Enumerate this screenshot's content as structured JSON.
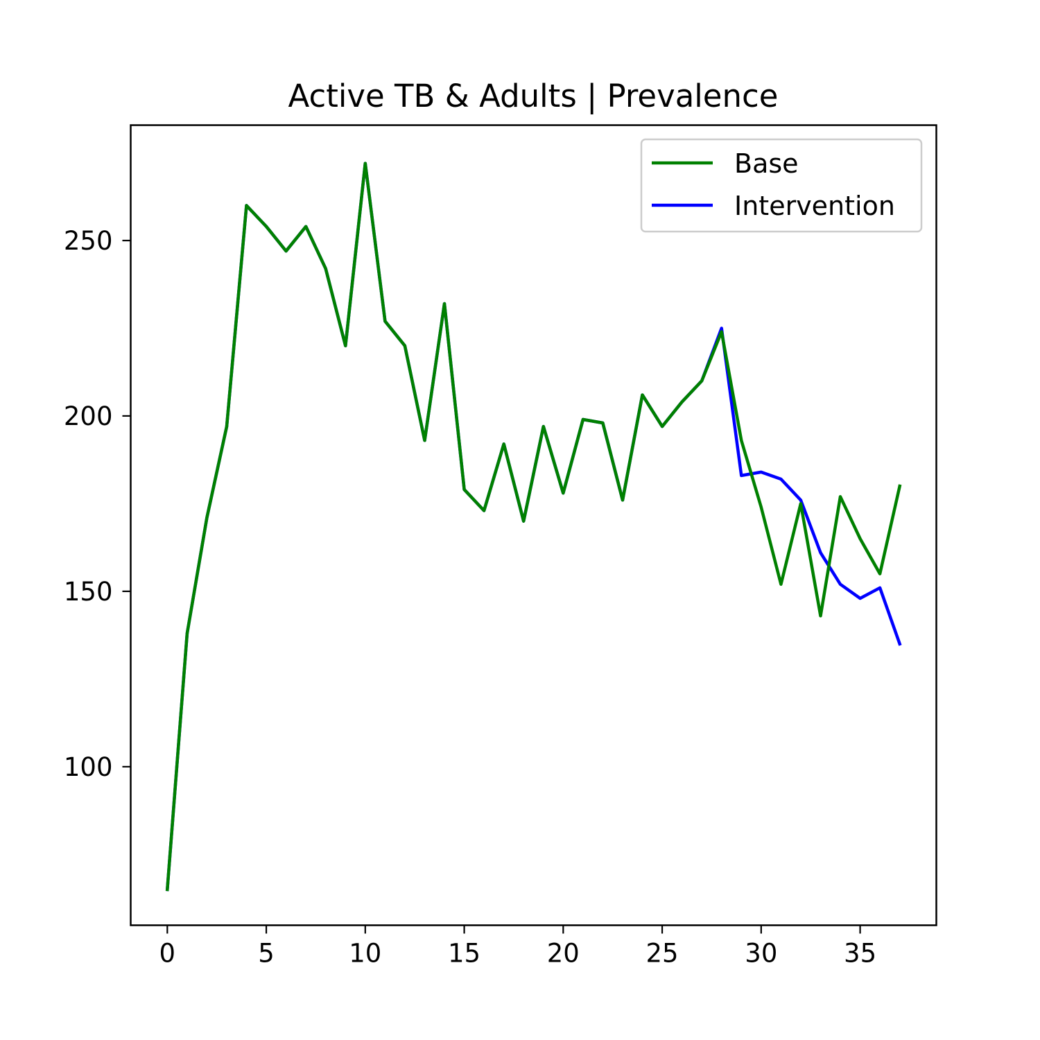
{
  "chart_data": {
    "type": "line",
    "title": "Active TB & Adults | Prevalence",
    "xlabel": "",
    "ylabel": "",
    "xlim": [
      -1.85,
      38.85
    ],
    "ylim": [
      54.8,
      282.9
    ],
    "xticks": [
      0,
      5,
      10,
      15,
      20,
      25,
      30,
      35
    ],
    "yticks": [
      100,
      150,
      200,
      250
    ],
    "grid": false,
    "legend_position": "top-right",
    "x": [
      0,
      1,
      2,
      3,
      4,
      5,
      6,
      7,
      8,
      9,
      10,
      11,
      12,
      13,
      14,
      15,
      16,
      17,
      18,
      19,
      20,
      21,
      22,
      23,
      24,
      25,
      26,
      27,
      28,
      29,
      30,
      31,
      32,
      33,
      34,
      35,
      36,
      37
    ],
    "series": [
      {
        "name": "Base",
        "color": "#008000",
        "values": [
          65,
          138,
          171,
          197,
          260,
          254,
          247,
          254,
          242,
          220,
          272,
          227,
          220,
          193,
          232,
          179,
          173,
          192,
          170,
          197,
          178,
          199,
          198,
          176,
          206,
          197,
          204,
          210,
          224,
          193,
          174,
          152,
          175,
          143,
          177,
          165,
          155,
          180
        ]
      },
      {
        "name": "Intervention",
        "color": "#0000ff",
        "values": [
          65,
          138,
          171,
          197,
          260,
          254,
          247,
          254,
          242,
          220,
          272,
          227,
          220,
          193,
          232,
          179,
          173,
          192,
          170,
          197,
          178,
          199,
          198,
          176,
          206,
          197,
          204,
          210,
          225,
          183,
          184,
          182,
          176,
          161,
          152,
          148,
          151,
          135
        ]
      }
    ]
  }
}
